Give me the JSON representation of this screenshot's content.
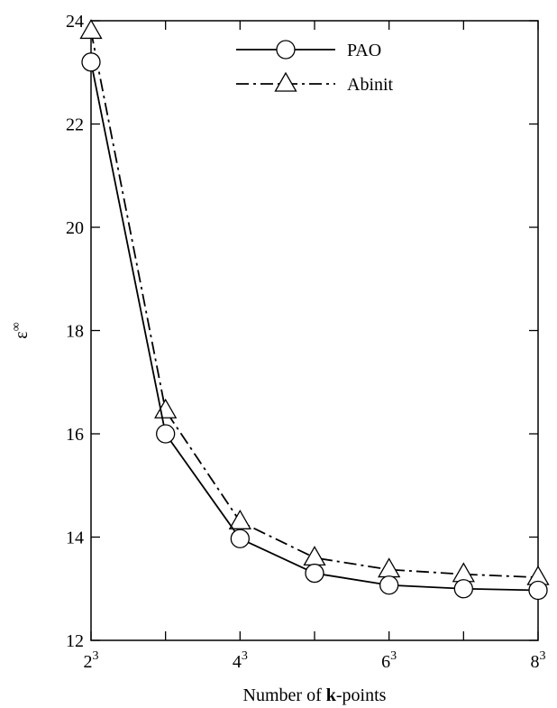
{
  "chart_data": {
    "type": "line",
    "xlabel": {
      "prefix": "Number of ",
      "bold": "k",
      "suffix": "-points"
    },
    "ylabel": {
      "base": "ε",
      "sup": "∞"
    },
    "x": [
      2,
      3,
      4,
      5,
      6,
      7,
      8
    ],
    "xticks": [
      {
        "value": 2,
        "base": "2",
        "sup": "3"
      },
      {
        "value": 4,
        "base": "4",
        "sup": "3"
      },
      {
        "value": 6,
        "base": "6",
        "sup": "3"
      },
      {
        "value": 8,
        "base": "8",
        "sup": "3"
      }
    ],
    "xlim": [
      2,
      8
    ],
    "ylim": [
      12,
      24
    ],
    "yticks": [
      12,
      14,
      16,
      18,
      20,
      22,
      24
    ],
    "grid": false,
    "legend_position": "top-right",
    "series": [
      {
        "name": "PAO",
        "marker": "circle",
        "line": "solid",
        "values": [
          23.2,
          16.0,
          13.97,
          13.3,
          13.07,
          13.0,
          12.97
        ]
      },
      {
        "name": "Abinit",
        "marker": "triangle",
        "line": "dash-dot",
        "values": [
          23.8,
          16.45,
          14.3,
          13.6,
          13.37,
          13.28,
          13.22
        ]
      }
    ]
  }
}
